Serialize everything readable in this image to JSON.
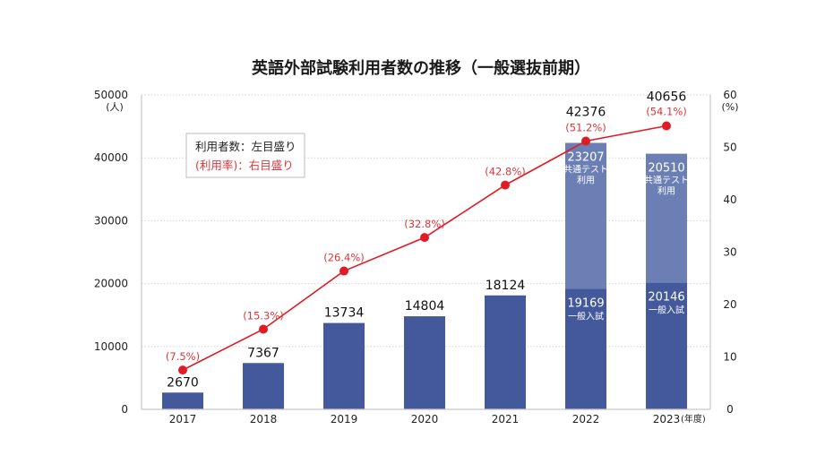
{
  "chart_data": {
    "type": "bar",
    "title": "英語外部試験利用者数の推移（一般選抜前期）",
    "xlabel": "",
    "x_unit": "(年度)",
    "categories": [
      "2017",
      "2018",
      "2019",
      "2020",
      "2021",
      "2022",
      "2023"
    ],
    "left_axis": {
      "label": "(人)",
      "ylim": [
        0,
        50000
      ],
      "ticks": [
        "0",
        "10000",
        "20000",
        "30000",
        "40000",
        "50000"
      ]
    },
    "right_axis": {
      "label": "(%)",
      "ylim": [
        0,
        60
      ],
      "ticks": [
        "0",
        "10",
        "20",
        "30",
        "40",
        "50",
        "60"
      ]
    },
    "grid": true,
    "series": [
      {
        "name": "一般入試",
        "kind": "bar",
        "axis": "left",
        "color": "#43599c",
        "values": [
          2670,
          7367,
          13734,
          14804,
          18124,
          19169,
          20146
        ]
      },
      {
        "name": "共通テスト利用",
        "kind": "bar-stack",
        "axis": "left",
        "color": "#6b7fb5",
        "values": [
          0,
          0,
          0,
          0,
          0,
          23207,
          20510
        ]
      },
      {
        "name": "利用率",
        "kind": "line",
        "axis": "right",
        "color": "#e01b24",
        "values": [
          7.5,
          15.3,
          26.4,
          32.8,
          42.8,
          51.2,
          54.1
        ]
      }
    ],
    "totals": [
      2670,
      7367,
      13734,
      14804,
      18124,
      42376,
      40656
    ],
    "total_labels": [
      "2670",
      "7367",
      "13734",
      "14804",
      "18124",
      "42376",
      "40656"
    ],
    "pct_labels": [
      "(7.5%)",
      "(15.3%)",
      "(26.4%)",
      "(32.8%)",
      "(42.8%)",
      "(51.2%)",
      "(54.1%)"
    ],
    "stack_labels": {
      "lower_text": "一般入試",
      "upper_text_line1": "共通テスト",
      "upper_text_line2": "利用"
    },
    "legend": {
      "placement": "top-left",
      "line1": "利用者数：左目盛り",
      "line2": "(利用率)：右目盛り"
    }
  }
}
